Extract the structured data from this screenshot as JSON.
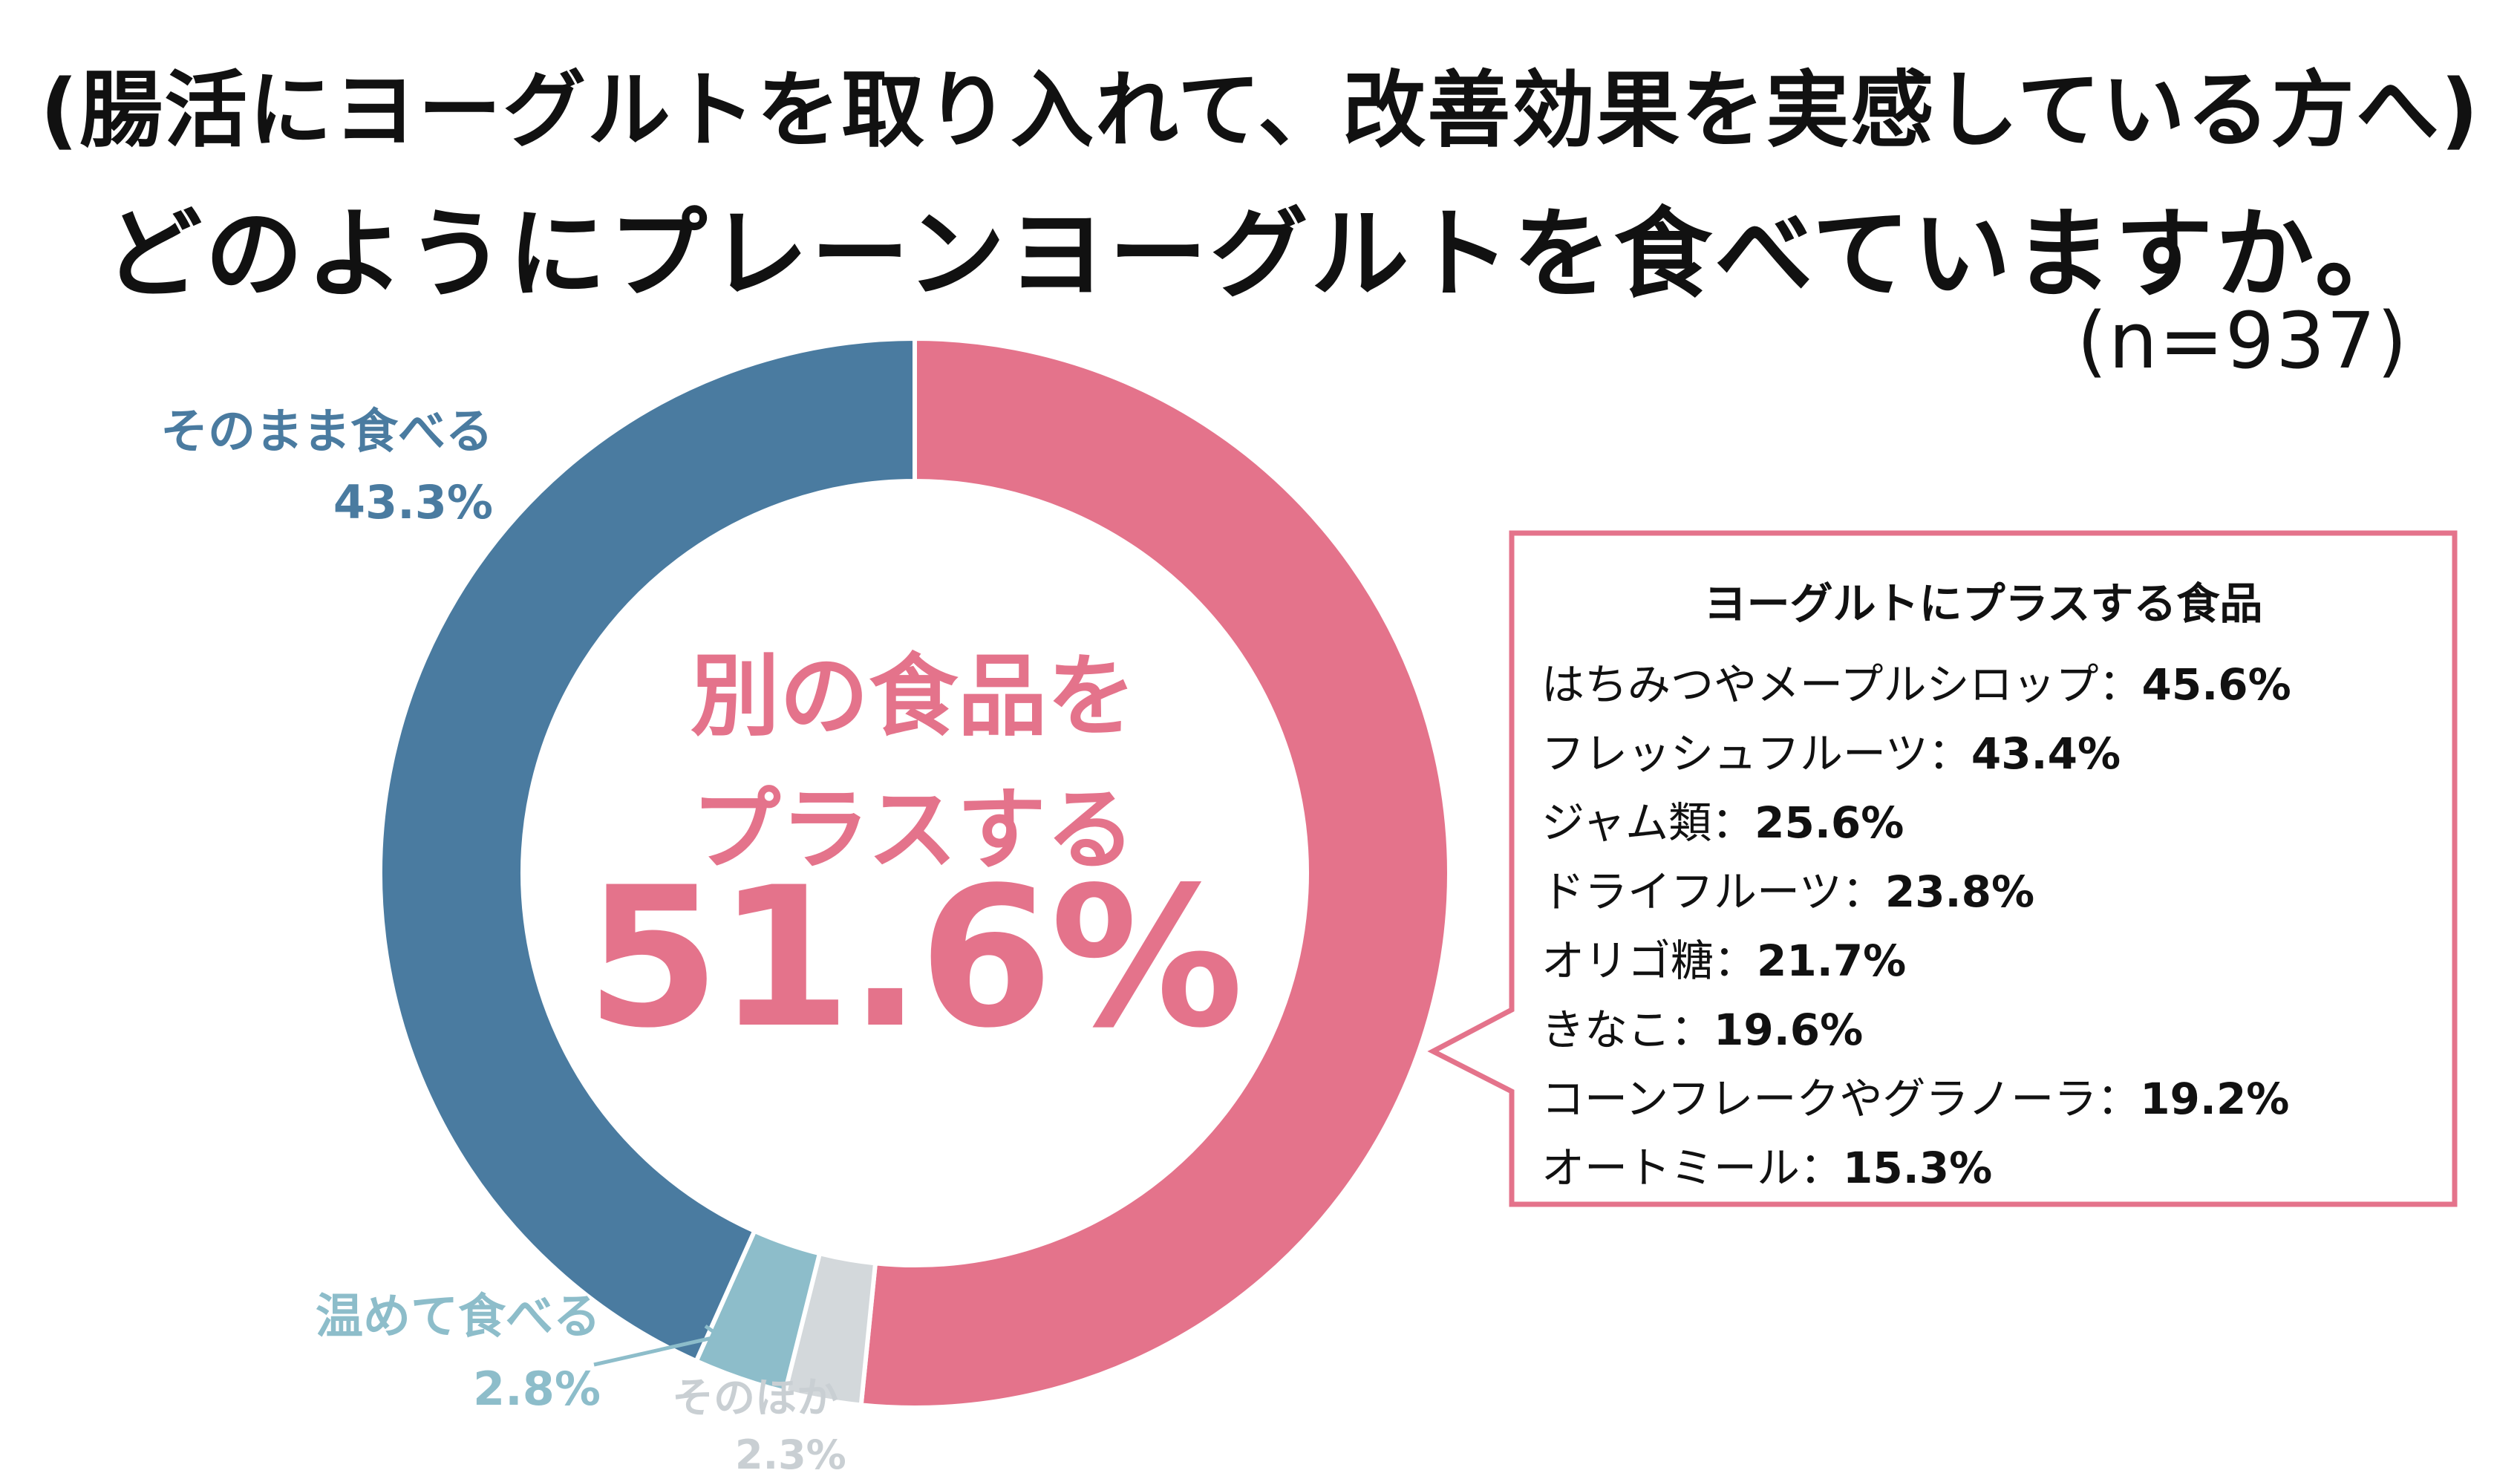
{
  "header": {
    "subtitle": "(腸活にヨーグルトを取り入れて、改善効果を実感している方へ)",
    "title": "どのようにプレーンヨーグルトを食べていますか。",
    "sample_size": "(n=937)"
  },
  "center": {
    "line1": "別の食品を",
    "line2": "プラスする",
    "value_label": "51.6%"
  },
  "segment_labels": {
    "plain": {
      "name": "そのまま食べる",
      "value": "43.3%"
    },
    "warm": {
      "name": "温めて食べる",
      "value": "2.8%"
    },
    "other": {
      "name": "そのほか",
      "value": "2.3%"
    }
  },
  "callout": {
    "title": "ヨーグルトにプラスする食品",
    "items": [
      {
        "name": "はちみつやメープルシロップ：",
        "value": "45.6%"
      },
      {
        "name": "フレッシュフルーツ：",
        "value": "43.4%"
      },
      {
        "name": "ジャム類：",
        "value": "25.6%"
      },
      {
        "name": "ドライフルーツ：",
        "value": "23.8%"
      },
      {
        "name": "オリゴ糖：",
        "value": "21.7%"
      },
      {
        "name": "きなこ：",
        "value": "19.6%"
      },
      {
        "name": "コーンフレークやグラノーラ：",
        "value": "19.2%"
      },
      {
        "name": "オートミール：",
        "value": "15.3%"
      }
    ]
  },
  "colors": {
    "pink": "#e4738b",
    "blue": "#4a7ba0",
    "light_blue": "#8dbdca",
    "gray": "#d3d8db"
  },
  "chart_data": {
    "type": "pie",
    "categories": [
      "別の食品をプラスする",
      "そのほか",
      "温めて食べる",
      "そのまま食べる"
    ],
    "values": [
      51.6,
      2.3,
      2.8,
      43.3
    ],
    "colors": [
      "#e4738b",
      "#d3d8db",
      "#8dbdca",
      "#4a7ba0"
    ]
  }
}
